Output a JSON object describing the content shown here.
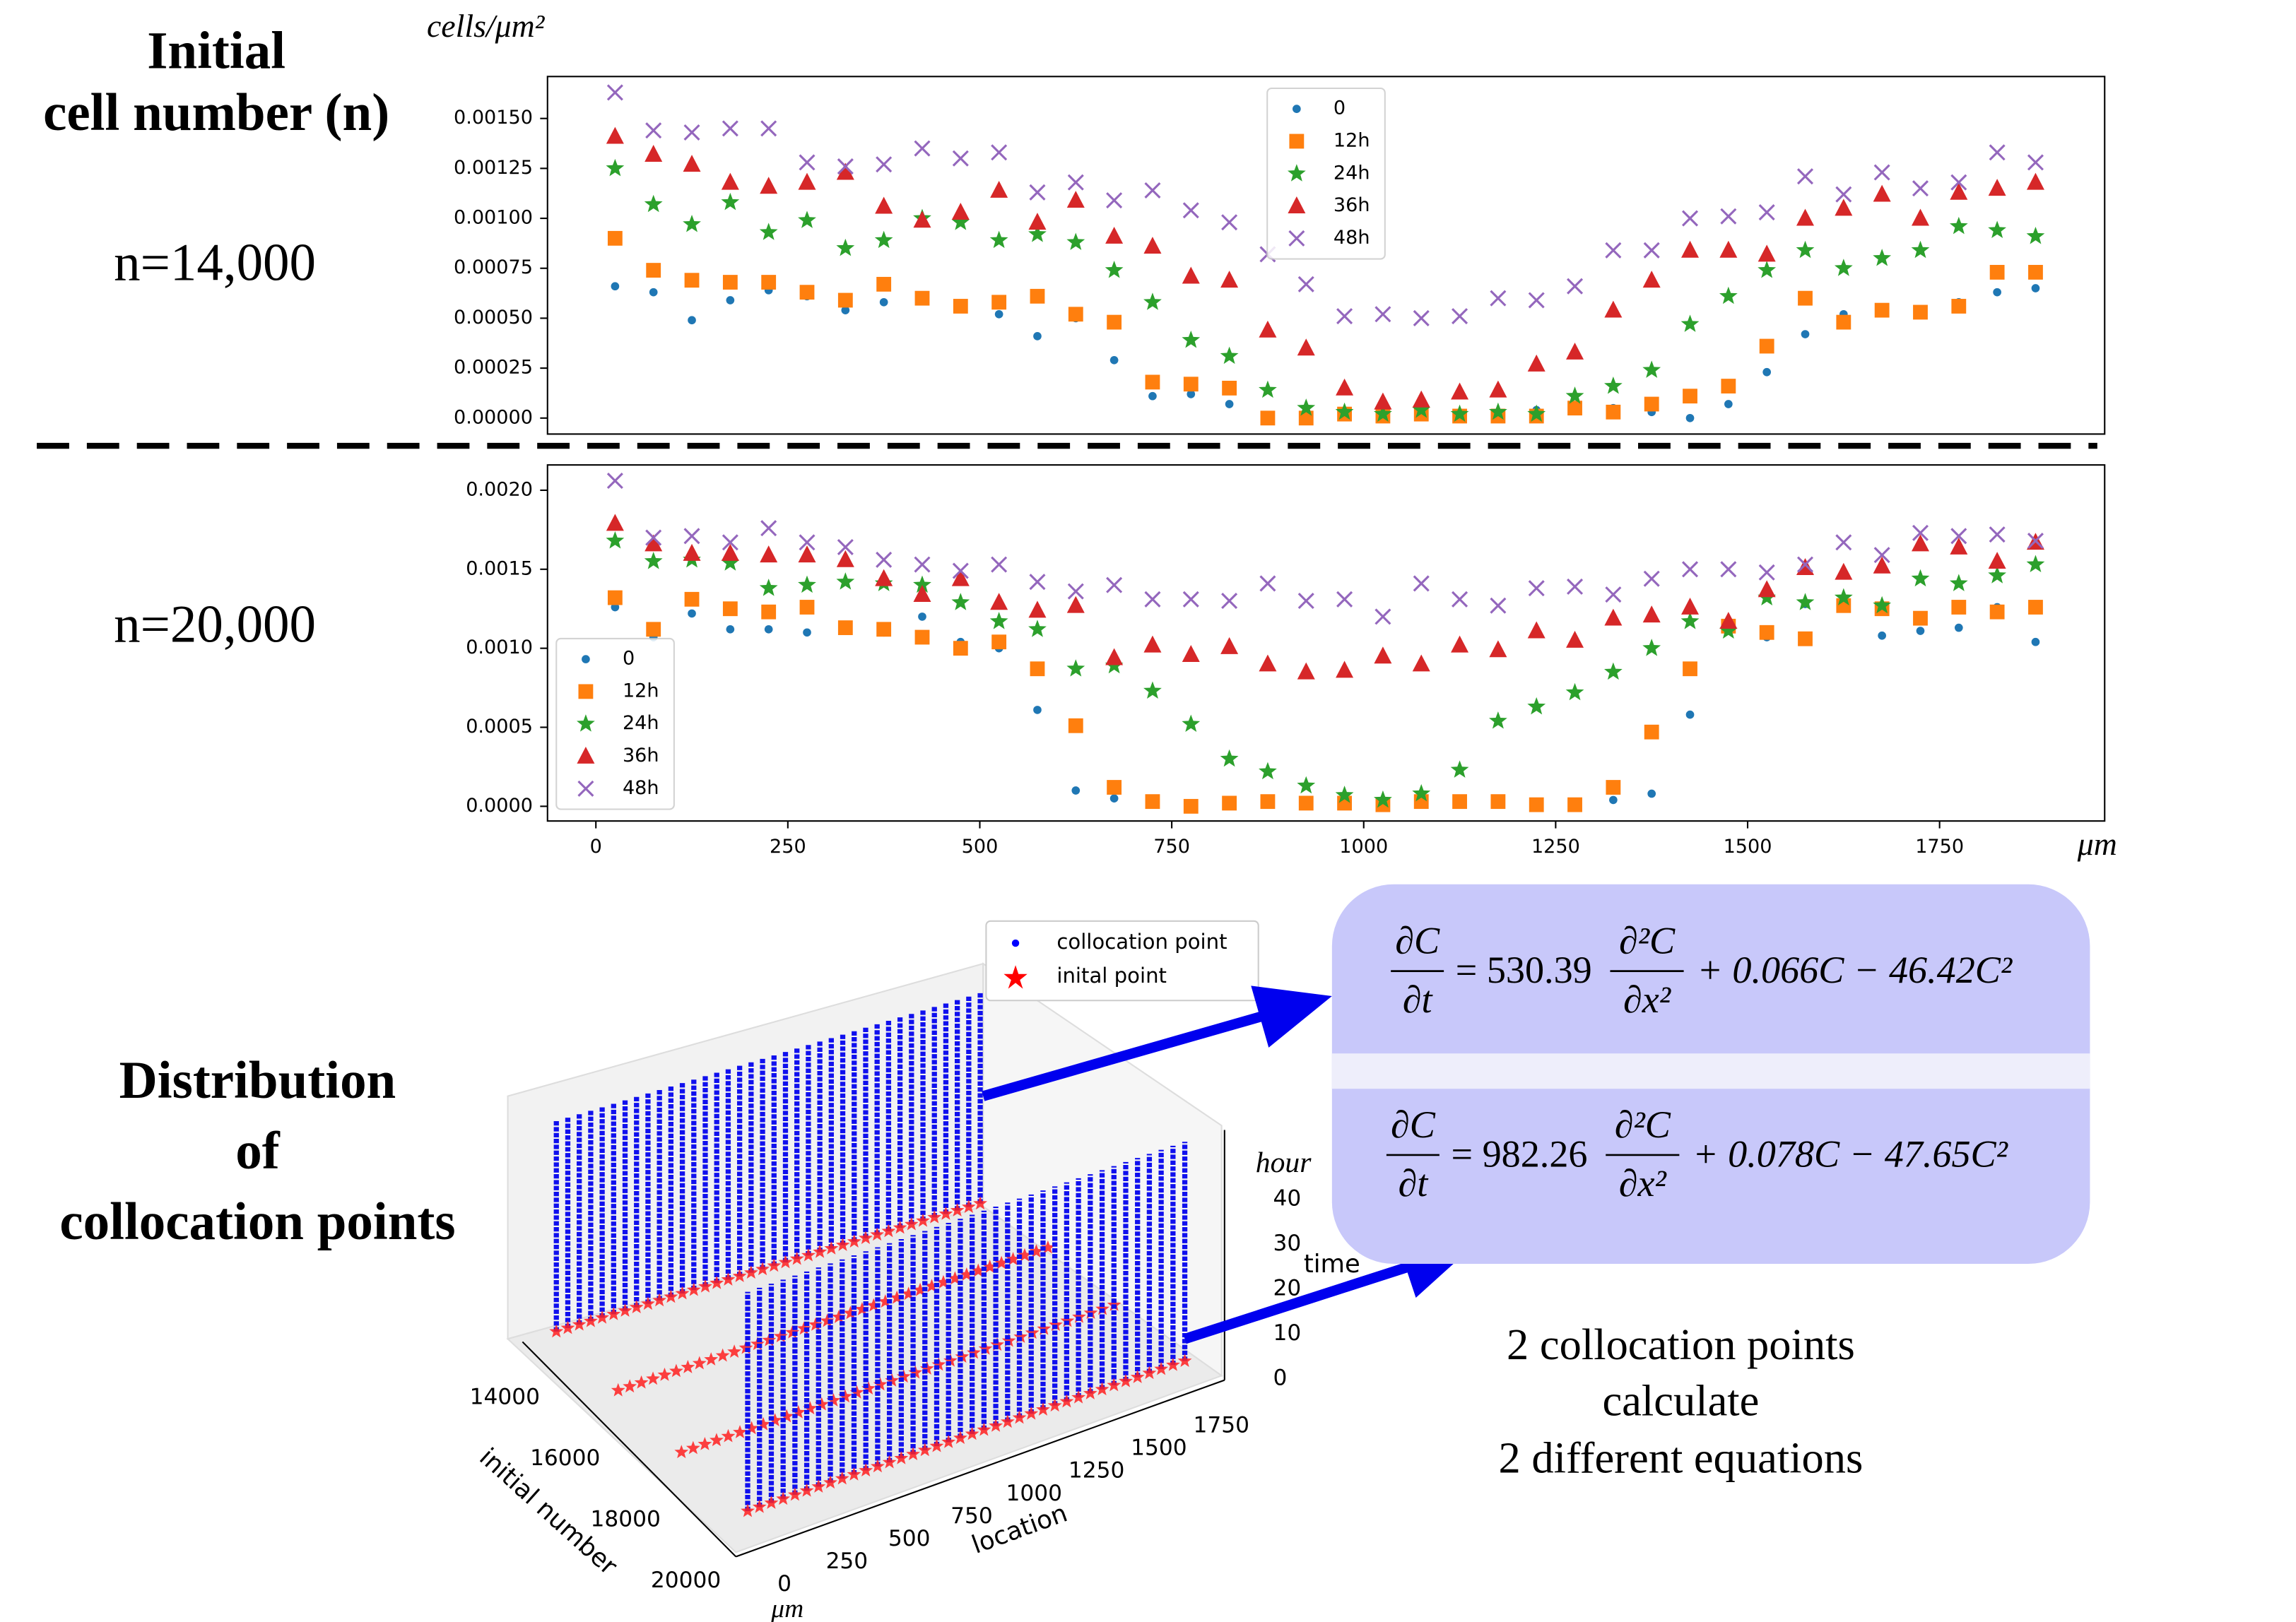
{
  "labels": {
    "initial_title": [
      "Initial",
      "cell number (n)"
    ],
    "n_top": "n=14,000",
    "n_bottom": "n=20,000",
    "distribution_title": [
      "Distribution",
      "of",
      "collocation points"
    ]
  },
  "chart_data": [
    {
      "type": "scatter",
      "ylabel": "cells/μm²",
      "legend": "upper center",
      "xlim": [
        -63,
        1965
      ],
      "ylim": [
        -8e-05,
        0.00171
      ],
      "yticks": [
        {
          "value": 0,
          "label": "0.00000"
        },
        0.00025,
        {
          "value": 0.0005,
          "label": "0.00050"
        },
        0.00075,
        {
          "value": 0.001,
          "label": "0.00100"
        },
        0.00125,
        {
          "value": 0.0015,
          "label": "0.00150"
        }
      ],
      "x": [
        25,
        75,
        125,
        175,
        225,
        275,
        325,
        375,
        425,
        475,
        525,
        575,
        625,
        675,
        725,
        775,
        825,
        875,
        925,
        975,
        1025,
        1075,
        1125,
        1175,
        1225,
        1275,
        1325,
        1375,
        1425,
        1475,
        1525,
        1575,
        1625,
        1675,
        1725,
        1775,
        1825,
        1875
      ],
      "series": [
        {
          "name": "0",
          "color": "#1f77b4",
          "marker": "circle",
          "values": [
            0.00066,
            0.00063,
            0.00049,
            0.00059,
            0.00064,
            0.00061,
            0.00054,
            0.00058,
            0.0006,
            0.00056,
            0.00052,
            0.00041,
            0.0005,
            0.00029,
            0.00011,
            0.00012,
            7e-05,
            1e-05,
            0,
            3e-05,
            0,
            4e-05,
            1e-05,
            1e-05,
            4e-05,
            5e-05,
            5e-05,
            3e-05,
            0,
            7e-05,
            0.00023,
            0.00042,
            0.00052,
            0.00053,
            0.00053,
            0.00058,
            0.00063,
            0.00065
          ]
        },
        {
          "name": "12h",
          "color": "#ff7f0e",
          "marker": "square",
          "values": [
            0.0009,
            0.00074,
            0.00069,
            0.00068,
            0.00068,
            0.00063,
            0.00059,
            0.00067,
            0.0006,
            0.00056,
            0.00058,
            0.00061,
            0.00052,
            0.00048,
            0.00018,
            0.00017,
            0.00015,
            0,
            0,
            2e-05,
            1e-05,
            2e-05,
            1e-05,
            1e-05,
            1e-05,
            5e-05,
            3e-05,
            7e-05,
            0.00011,
            0.00016,
            0.00036,
            0.0006,
            0.00048,
            0.00054,
            0.00053,
            0.00056,
            0.00073,
            0.00073
          ]
        },
        {
          "name": "24h",
          "color": "#2ca02c",
          "marker": "star",
          "values": [
            0.00125,
            0.00107,
            0.00097,
            0.00108,
            0.00093,
            0.00099,
            0.00085,
            0.00089,
            0.001,
            0.00098,
            0.00089,
            0.00092,
            0.00088,
            0.00074,
            0.00058,
            0.00039,
            0.00031,
            0.00014,
            5e-05,
            3e-05,
            2e-05,
            4e-05,
            2e-05,
            3e-05,
            2e-05,
            0.00011,
            0.00016,
            0.00024,
            0.00047,
            0.00061,
            0.00074,
            0.00084,
            0.00075,
            0.0008,
            0.00084,
            0.00096,
            0.00094,
            0.00091
          ]
        },
        {
          "name": "36h",
          "color": "#d62728",
          "marker": "triangle",
          "values": [
            0.00141,
            0.00132,
            0.00127,
            0.00118,
            0.00116,
            0.00118,
            0.00123,
            0.00106,
            0.00099,
            0.00103,
            0.00114,
            0.00098,
            0.00109,
            0.00091,
            0.00086,
            0.00071,
            0.00069,
            0.00044,
            0.00035,
            0.00015,
            8e-05,
            9e-05,
            0.00013,
            0.00014,
            0.00027,
            0.00033,
            0.00054,
            0.00069,
            0.00084,
            0.00084,
            0.00082,
            0.001,
            0.00105,
            0.00112,
            0.001,
            0.00113,
            0.00115,
            0.00118
          ]
        },
        {
          "name": "48h",
          "color": "#9467bd",
          "marker": "x",
          "values": [
            0.00163,
            0.00144,
            0.00143,
            0.00145,
            0.00145,
            0.00128,
            0.00126,
            0.00127,
            0.00135,
            0.0013,
            0.00133,
            0.00113,
            0.00118,
            0.00109,
            0.00114,
            0.00104,
            0.00098,
            0.00082,
            0.00067,
            0.00051,
            0.00052,
            0.0005,
            0.00051,
            0.0006,
            0.00059,
            0.00066,
            0.00084,
            0.00084,
            0.001,
            0.00101,
            0.00103,
            0.00121,
            0.00112,
            0.00123,
            0.00115,
            0.00118,
            0.00133,
            0.00128
          ]
        }
      ]
    },
    {
      "type": "scatter",
      "xlabel": "μm",
      "legend": "lower left",
      "xlim": [
        -63,
        1965
      ],
      "ylim": [
        -9.3e-05,
        0.00216
      ],
      "xticks": [
        0,
        250,
        500,
        750,
        1000,
        1250,
        1500,
        1750
      ],
      "yticks": [
        {
          "value": 0,
          "label": "0.0000"
        },
        0.0005,
        {
          "value": 0.001,
          "label": "0.0010"
        },
        0.0015,
        {
          "value": 0.002,
          "label": "0.0020"
        }
      ],
      "x": [
        25,
        75,
        125,
        175,
        225,
        275,
        325,
        375,
        425,
        475,
        525,
        575,
        625,
        675,
        725,
        775,
        825,
        875,
        925,
        975,
        1025,
        1075,
        1125,
        1175,
        1225,
        1275,
        1325,
        1375,
        1425,
        1475,
        1525,
        1575,
        1625,
        1675,
        1725,
        1775,
        1825,
        1875
      ],
      "series": [
        {
          "name": "0",
          "color": "#1f77b4",
          "marker": "circle",
          "values": [
            0.00126,
            0.00107,
            0.00122,
            0.00112,
            0.00112,
            0.0011,
            0.00114,
            0.0011,
            0.0012,
            0.00104,
            0.001,
            0.00061,
            0.0001,
            5e-05,
            3e-05,
            0,
            2e-05,
            3e-05,
            1e-05,
            3e-05,
            1e-05,
            2e-05,
            1e-05,
            1e-05,
            1e-05,
            1e-05,
            4e-05,
            8e-05,
            0.00058,
            0.00115,
            0.00107,
            0.00128,
            0.0013,
            0.00108,
            0.00111,
            0.00113,
            0.00126,
            0.00104
          ]
        },
        {
          "name": "12h",
          "color": "#ff7f0e",
          "marker": "square",
          "values": [
            0.00132,
            0.00112,
            0.00131,
            0.00125,
            0.00123,
            0.00126,
            0.00113,
            0.00112,
            0.00107,
            0.001,
            0.00104,
            0.00087,
            0.00051,
            0.00012,
            3e-05,
            0,
            2e-05,
            3e-05,
            2e-05,
            2e-05,
            1e-05,
            3e-05,
            3e-05,
            3e-05,
            1e-05,
            1e-05,
            0.00012,
            0.00047,
            0.00087,
            0.00114,
            0.0011,
            0.00106,
            0.00127,
            0.00125,
            0.00119,
            0.00126,
            0.00123,
            0.00126
          ]
        },
        {
          "name": "24h",
          "color": "#2ca02c",
          "marker": "star",
          "values": [
            0.00168,
            0.00155,
            0.00156,
            0.00154,
            0.00138,
            0.0014,
            0.00142,
            0.00141,
            0.0014,
            0.00129,
            0.00117,
            0.00112,
            0.00087,
            0.00089,
            0.00073,
            0.00052,
            0.0003,
            0.00022,
            0.00013,
            7e-05,
            4e-05,
            8e-05,
            0.00023,
            0.00054,
            0.00063,
            0.00072,
            0.00085,
            0.001,
            0.00117,
            0.00111,
            0.00132,
            0.00129,
            0.00132,
            0.00127,
            0.00144,
            0.00141,
            0.00146,
            0.00153
          ]
        },
        {
          "name": "36h",
          "color": "#d62728",
          "marker": "triangle",
          "values": [
            0.00179,
            0.00166,
            0.0016,
            0.0016,
            0.00159,
            0.00159,
            0.00156,
            0.00144,
            0.00134,
            0.00144,
            0.00129,
            0.00124,
            0.00127,
            0.00094,
            0.00102,
            0.00096,
            0.00101,
            0.0009,
            0.00085,
            0.00086,
            0.00095,
            0.0009,
            0.00102,
            0.00099,
            0.00111,
            0.00105,
            0.00119,
            0.00121,
            0.00126,
            0.00117,
            0.00137,
            0.00151,
            0.00148,
            0.00152,
            0.00166,
            0.00164,
            0.00155,
            0.00167
          ]
        },
        {
          "name": "48h",
          "color": "#9467bd",
          "marker": "x",
          "values": [
            0.00206,
            0.0017,
            0.00171,
            0.00167,
            0.00176,
            0.00167,
            0.00164,
            0.00156,
            0.00153,
            0.00149,
            0.00153,
            0.00142,
            0.00136,
            0.0014,
            0.00131,
            0.00131,
            0.0013,
            0.00141,
            0.0013,
            0.00131,
            0.0012,
            0.00141,
            0.00131,
            0.00127,
            0.00138,
            0.00139,
            0.00134,
            0.00144,
            0.0015,
            0.0015,
            0.00148,
            0.00153,
            0.00167,
            0.00159,
            0.00173,
            0.00171,
            0.00172,
            0.00168
          ]
        }
      ]
    }
  ],
  "plot3d": {
    "legend": [
      "collocation point",
      "inital point"
    ],
    "initial_number_ticks": [
      14000,
      16000,
      18000,
      20000
    ],
    "location_ticks": [
      0,
      250,
      500,
      750,
      1000,
      1250,
      1500,
      1750
    ],
    "time_ticks": [
      0,
      10,
      20,
      30,
      40
    ],
    "initial_number_label": "initial number",
    "location_label": "location",
    "location_unit": "μm",
    "time_label": "time",
    "time_unit": "hour"
  },
  "equations": [
    {
      "lhs": {
        "num": "∂C",
        "den": "∂t"
      },
      "coefficient": "= 530.39",
      "term": {
        "num": "∂²C",
        "den": "∂x²"
      },
      "rest": "+ 0.066C − 46.42C²"
    },
    {
      "lhs": {
        "num": "∂C",
        "den": "∂t"
      },
      "coefficient": "= 982.26",
      "term": {
        "num": "∂²C",
        "den": "∂x²"
      },
      "rest": "+ 0.078C − 47.65C²"
    }
  ],
  "caption": [
    "2 collocation points",
    "calculate",
    "2 different equations"
  ]
}
